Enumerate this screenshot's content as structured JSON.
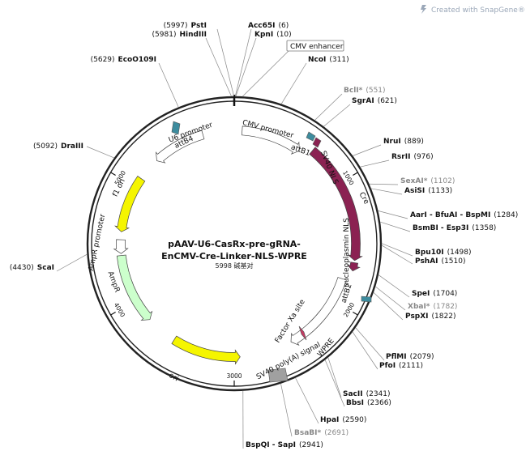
{
  "watermark": {
    "text": "Created with SnapGene®",
    "icon": "snapgene-logo-icon"
  },
  "plasmid": {
    "name_line1": "pAAV-U6-CasRx-pre-gRNA-",
    "name_line2": "EnCMV-Cre-Linker-NLS-WPRE",
    "length_text": "5998 碱基对"
  },
  "ticks": [
    {
      "label": "1000",
      "angle": 60
    },
    {
      "label": "2000",
      "angle": 120
    },
    {
      "label": "3000",
      "angle": 180
    },
    {
      "label": "4000",
      "angle": 240
    },
    {
      "label": "5000",
      "angle": 300
    }
  ],
  "features": [
    {
      "id": "u6-promoter",
      "label": "U6 promoter",
      "start": 317,
      "end": 344,
      "r": 140,
      "color": "#ffffff",
      "dir": -1,
      "width": 11
    },
    {
      "id": "cmv-promoter",
      "label": "CMV promoter",
      "start": 4,
      "end": 35,
      "r": 140,
      "color": "#ffffff",
      "dir": 1,
      "width": 11
    },
    {
      "id": "cre",
      "label": "Cre",
      "start": 40,
      "end": 98,
      "r": 150,
      "color": "#8b2252",
      "dir": 1,
      "width": 11
    },
    {
      "id": "nucleoplasmin-nls",
      "label": "nucleoplasmin NLS",
      "start": 99,
      "end": 103,
      "r": 150,
      "color": "#8b2252",
      "dir": 1,
      "width": 9
    },
    {
      "id": "wpre",
      "label": "WPRE",
      "start": 108,
      "end": 150,
      "r": 140,
      "color": "#ffffff",
      "dir": 1,
      "width": 11
    },
    {
      "id": "ori",
      "label": "ori",
      "start": 177,
      "end": 212,
      "r": 140,
      "color": "#f5f500",
      "dir": -1,
      "width": 11
    },
    {
      "id": "ampr",
      "label": "AmpR",
      "start": 228,
      "end": 264,
      "r": 140,
      "color": "#ccffcc",
      "dir": -1,
      "width": 11
    },
    {
      "id": "ampr-promoter",
      "label": "AmpR promoter",
      "start": 265,
      "end": 272,
      "r": 140,
      "color": "#ffffff",
      "dir": -1,
      "width": 11
    },
    {
      "id": "f1-ori",
      "label": "f1 ori",
      "start": 276,
      "end": 305,
      "r": 140,
      "color": "#f5f500",
      "dir": -1,
      "width": 11
    }
  ],
  "small_features": [
    {
      "id": "attb4",
      "label": "attB4",
      "angle": 339,
      "color": "#3d8c9e"
    },
    {
      "id": "attb1",
      "label": "attB1",
      "angle": 36,
      "color": "#3d8c9e"
    },
    {
      "id": "sv40-nls",
      "label": "SV40 NLS",
      "angle": 40,
      "color": "#8b2252"
    },
    {
      "id": "attb2",
      "label": "attB2",
      "angle": 106,
      "color": "#3d8c9e"
    },
    {
      "id": "factor-xa-site",
      "label": "Factor Xa site",
      "angle": 125,
      "color": "#c23b62"
    },
    {
      "id": "sv40-polya-signal",
      "label": "SV40 poly(A) signal",
      "angle": 152,
      "color": "#a0a0a0"
    }
  ],
  "cmv_enhancer": {
    "label": "CMV enhancer"
  },
  "sites": [
    {
      "name": "PstI",
      "pos": "(5997)",
      "side": "left",
      "grey": false
    },
    {
      "name": "Acc65I",
      "pos": "(6)",
      "side": "right",
      "grey": false
    },
    {
      "name": "HindIII",
      "pos": "(5981)",
      "side": "left",
      "grey": false
    },
    {
      "name": "KpnI",
      "pos": "(10)",
      "side": "right",
      "grey": false
    },
    {
      "name": "EcoO109I",
      "pos": "(5629)",
      "side": "left",
      "grey": false
    },
    {
      "name": "NcoI",
      "pos": "(311)",
      "side": "right",
      "grey": false
    },
    {
      "name": "BclI*",
      "pos": "(551)",
      "side": "right",
      "grey": true
    },
    {
      "name": "SgrAI",
      "pos": "(621)",
      "side": "right",
      "grey": false
    },
    {
      "name": "DraIII",
      "pos": "(5092)",
      "side": "left",
      "grey": false
    },
    {
      "name": "NruI",
      "pos": "(889)",
      "side": "right",
      "grey": false
    },
    {
      "name": "RsrII",
      "pos": "(976)",
      "side": "right",
      "grey": false
    },
    {
      "name": "SexAI*",
      "pos": "(1102)",
      "side": "right",
      "grey": true
    },
    {
      "name": "AsiSI",
      "pos": "(1133)",
      "side": "right",
      "grey": false
    },
    {
      "name": "AarI - BfuAI - BspMI",
      "pos": "(1284)",
      "side": "right",
      "grey": false
    },
    {
      "name": "BsmBI - Esp3I",
      "pos": "(1358)",
      "side": "right",
      "grey": false
    },
    {
      "name": "Bpu10I",
      "pos": "(1498)",
      "side": "right",
      "grey": false
    },
    {
      "name": "PshAI",
      "pos": "(1510)",
      "side": "right",
      "grey": false
    },
    {
      "name": "ScaI",
      "pos": "(4430)",
      "side": "left",
      "grey": false
    },
    {
      "name": "SpeI",
      "pos": "(1704)",
      "side": "right",
      "grey": false
    },
    {
      "name": "XbaI*",
      "pos": "(1782)",
      "side": "right",
      "grey": true
    },
    {
      "name": "PspXI",
      "pos": "(1822)",
      "side": "right",
      "grey": false
    },
    {
      "name": "PflMI",
      "pos": "(2079)",
      "side": "right",
      "grey": false
    },
    {
      "name": "PfoI",
      "pos": "(2111)",
      "side": "right",
      "grey": false
    },
    {
      "name": "SacII",
      "pos": "(2341)",
      "side": "right",
      "grey": false
    },
    {
      "name": "BbsI",
      "pos": "(2366)",
      "side": "right",
      "grey": false
    },
    {
      "name": "HpaI",
      "pos": "(2590)",
      "side": "right",
      "grey": false
    },
    {
      "name": "BsaBI*",
      "pos": "(2691)",
      "side": "right",
      "grey": true
    },
    {
      "name": "BspQI - SapI",
      "pos": "(2941)",
      "side": "right",
      "grey": false
    }
  ]
}
